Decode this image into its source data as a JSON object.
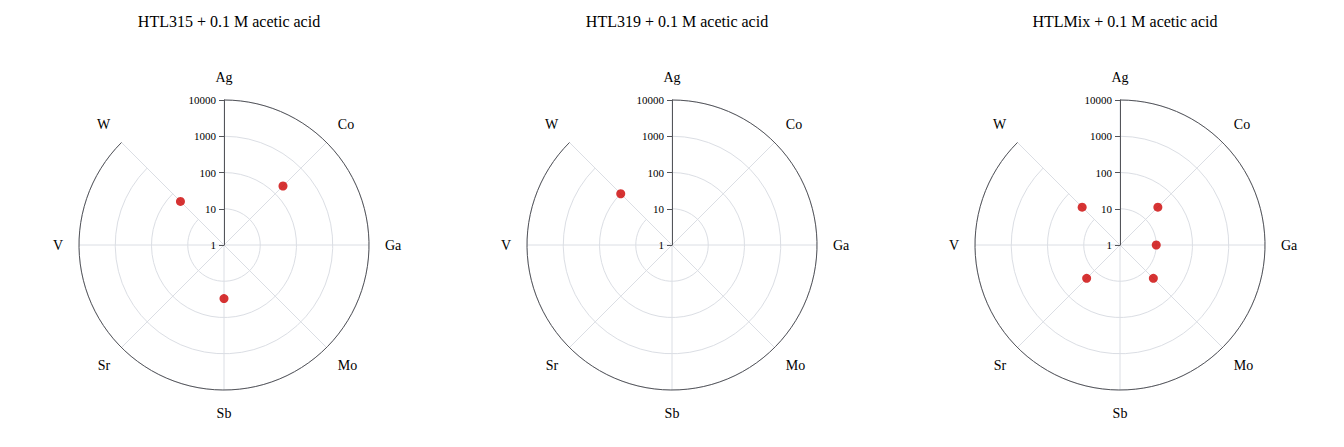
{
  "chart_data": [
    {
      "type": "radar",
      "title": "HTL315 + 0.1 M acetic acid",
      "categories": [
        "Ag",
        "Co",
        "Ga",
        "Mo",
        "Sb",
        "Sr",
        "V",
        "W"
      ],
      "values": [
        null,
        200,
        null,
        null,
        30,
        null,
        null,
        50
      ],
      "color": "#cc0000",
      "marker": "circle",
      "log": true,
      "ylim": [
        1,
        10000
      ],
      "yticks": [
        1,
        10,
        100,
        1000,
        10000
      ],
      "grid": true
    },
    {
      "type": "radar",
      "title": "HTL319 + 0.1 M acetic acid",
      "categories": [
        "Ag",
        "Co",
        "Ga",
        "Mo",
        "Sb",
        "Sr",
        "V",
        "W"
      ],
      "values": [
        null,
        null,
        null,
        null,
        null,
        null,
        null,
        100
      ],
      "color": "#cc0000",
      "marker": "circle",
      "log": true,
      "ylim": [
        1,
        10000
      ],
      "yticks": [
        1,
        10,
        100,
        1000,
        10000
      ],
      "grid": true
    },
    {
      "type": "radar",
      "title": "HTLMix + 0.1 M acetic acid",
      "categories": [
        "Ag",
        "Co",
        "Ga",
        "Mo",
        "Sb",
        "Sr",
        "V",
        "W"
      ],
      "values": [
        null,
        30,
        10,
        20,
        null,
        20,
        null,
        30
      ],
      "color": "#cc0000",
      "marker": "circle",
      "log": true,
      "ylim": [
        1,
        10000
      ],
      "yticks": [
        1,
        10,
        100,
        1000,
        10000
      ],
      "grid": true
    }
  ]
}
